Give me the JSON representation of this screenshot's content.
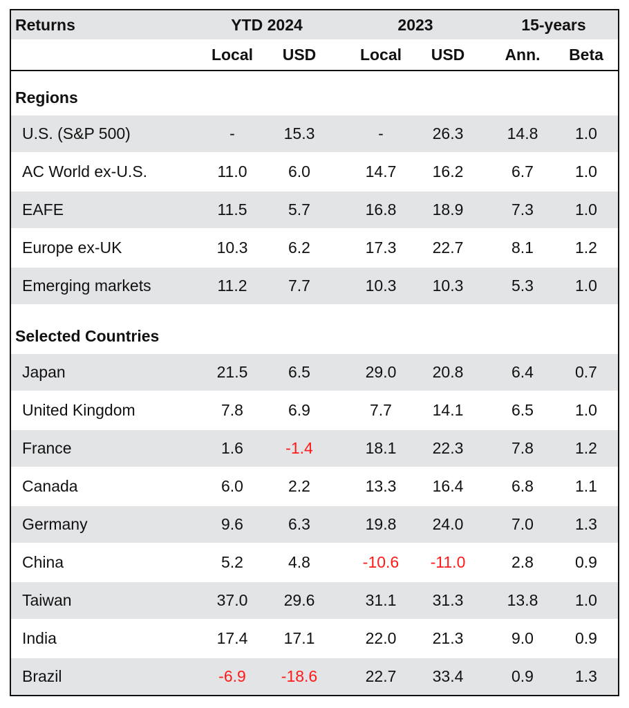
{
  "header": {
    "title": "Returns",
    "groups": [
      "YTD 2024",
      "2023",
      "15-years"
    ],
    "subcols": [
      "Local",
      "USD",
      "Local",
      "USD",
      "Ann.",
      "Beta"
    ]
  },
  "sections": [
    {
      "label": "Regions",
      "rows": [
        {
          "name": "U.S. (S&P 500)",
          "values": [
            "-",
            "15.3",
            "-",
            "26.3",
            "14.8",
            "1.0"
          ]
        },
        {
          "name": "AC World ex-U.S.",
          "values": [
            "11.0",
            "6.0",
            "14.7",
            "16.2",
            "6.7",
            "1.0"
          ]
        },
        {
          "name": "EAFE",
          "values": [
            "11.5",
            "5.7",
            "16.8",
            "18.9",
            "7.3",
            "1.0"
          ]
        },
        {
          "name": "Europe ex-UK",
          "values": [
            "10.3",
            "6.2",
            "17.3",
            "22.7",
            "8.1",
            "1.2"
          ]
        },
        {
          "name": "Emerging markets",
          "values": [
            "11.2",
            "7.7",
            "10.3",
            "10.3",
            "5.3",
            "1.0"
          ]
        }
      ]
    },
    {
      "label": "Selected Countries",
      "rows": [
        {
          "name": "Japan",
          "values": [
            "21.5",
            "6.5",
            "29.0",
            "20.8",
            "6.4",
            "0.7"
          ]
        },
        {
          "name": "United Kingdom",
          "values": [
            "7.8",
            "6.9",
            "7.7",
            "14.1",
            "6.5",
            "1.0"
          ]
        },
        {
          "name": "France",
          "values": [
            "1.6",
            "-1.4",
            "18.1",
            "22.3",
            "7.8",
            "1.2"
          ]
        },
        {
          "name": "Canada",
          "values": [
            "6.0",
            "2.2",
            "13.3",
            "16.4",
            "6.8",
            "1.1"
          ]
        },
        {
          "name": "Germany",
          "values": [
            "9.6",
            "6.3",
            "19.8",
            "24.0",
            "7.0",
            "1.3"
          ]
        },
        {
          "name": "China",
          "values": [
            "5.2",
            "4.8",
            "-10.6",
            "-11.0",
            "2.8",
            "0.9"
          ]
        },
        {
          "name": "Taiwan",
          "values": [
            "37.0",
            "29.6",
            "31.1",
            "31.3",
            "13.8",
            "1.0"
          ]
        },
        {
          "name": "India",
          "values": [
            "17.4",
            "17.1",
            "22.0",
            "21.3",
            "9.0",
            "0.9"
          ]
        },
        {
          "name": "Brazil",
          "values": [
            "-6.9",
            "-18.6",
            "22.7",
            "33.4",
            "0.9",
            "1.3"
          ]
        }
      ]
    }
  ],
  "colors": {
    "band": "#e3e4e6",
    "negative": "#ff1a1a",
    "text": "#111111"
  }
}
